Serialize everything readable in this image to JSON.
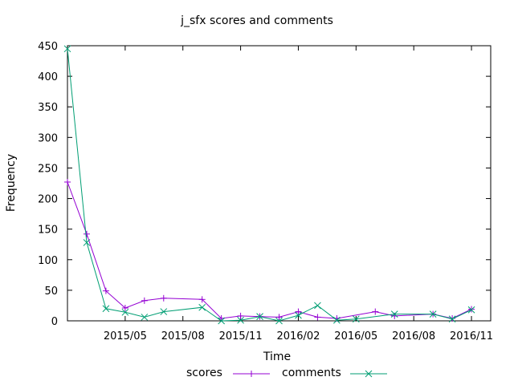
{
  "chart_data": {
    "type": "line",
    "title": "j_sfx scores and comments",
    "xlabel": "Time",
    "ylabel": "Frequency",
    "ylim": [
      0,
      450
    ],
    "yticks": [
      0,
      50,
      100,
      150,
      200,
      250,
      300,
      350,
      400,
      450
    ],
    "xlim": [
      "2015-02-01",
      "2016-12-01"
    ],
    "xticks": [
      "2015/05",
      "2015/08",
      "2015/11",
      "2016/02",
      "2016/05",
      "2016/08",
      "2016/11"
    ],
    "grid": false,
    "legend_position": "bottom",
    "series": [
      {
        "name": "scores",
        "color": "#9400d3",
        "marker": "plus",
        "points": [
          [
            "2015-02-01",
            227
          ],
          [
            "2015-03-01",
            142
          ],
          [
            "2015-04-01",
            49
          ],
          [
            "2015-05-01",
            21
          ],
          [
            "2015-06-01",
            33
          ],
          [
            "2015-07-01",
            37
          ],
          [
            "2015-09-01",
            35
          ],
          [
            "2015-10-01",
            4
          ],
          [
            "2015-11-01",
            8
          ],
          [
            "2015-12-01",
            7
          ],
          [
            "2016-01-01",
            6
          ],
          [
            "2016-02-01",
            15
          ],
          [
            "2016-03-01",
            6
          ],
          [
            "2016-04-01",
            4
          ],
          [
            "2016-06-01",
            15
          ],
          [
            "2016-07-01",
            8
          ],
          [
            "2016-09-01",
            11
          ],
          [
            "2016-10-01",
            4
          ],
          [
            "2016-11-01",
            19
          ]
        ]
      },
      {
        "name": "comments",
        "color": "#009e73",
        "marker": "x",
        "points": [
          [
            "2015-02-01",
            445
          ],
          [
            "2015-03-01",
            128
          ],
          [
            "2015-04-01",
            20
          ],
          [
            "2015-05-01",
            14
          ],
          [
            "2015-06-01",
            6
          ],
          [
            "2015-07-01",
            15
          ],
          [
            "2015-09-01",
            22
          ],
          [
            "2015-10-01",
            0
          ],
          [
            "2015-11-01",
            1
          ],
          [
            "2015-12-01",
            7
          ],
          [
            "2016-01-01",
            0
          ],
          [
            "2016-02-01",
            9
          ],
          [
            "2016-03-01",
            25
          ],
          [
            "2016-04-01",
            1
          ],
          [
            "2016-05-01",
            3
          ],
          [
            "2016-07-01",
            11
          ],
          [
            "2016-09-01",
            11
          ],
          [
            "2016-10-01",
            3
          ],
          [
            "2016-11-01",
            18
          ]
        ]
      }
    ]
  }
}
